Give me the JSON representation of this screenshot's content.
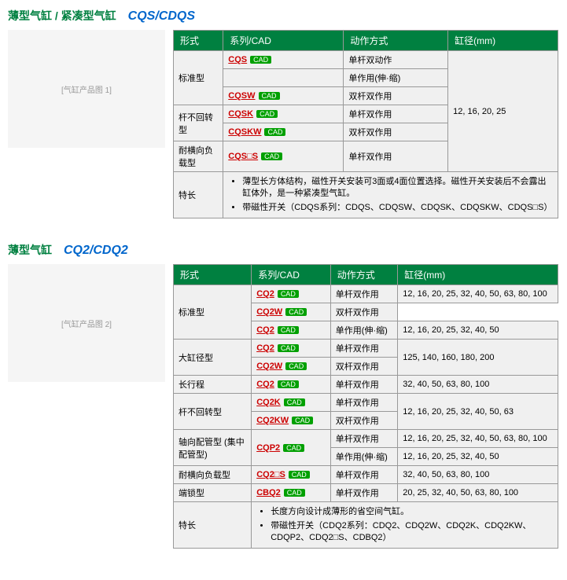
{
  "products": [
    {
      "title": "薄型气缸 / 紧凑型气缸",
      "model": "CQS/CDQS",
      "image_label": "[气缸产品图 1]",
      "headers": [
        "形式",
        "系列/CAD",
        "动作方式",
        "缸径(mm)"
      ],
      "cad_text": "CAD",
      "rows": [
        {
          "form": "标准型",
          "form_rowspan": 3,
          "series": "CQS",
          "action": "单杆双动作",
          "bore": "12, 16, 20, 25",
          "bore_rowspan": 6
        },
        {
          "series": "",
          "action": "单作用(伸·缩)"
        },
        {
          "series": "CQSW",
          "action": "双杆双作用"
        },
        {
          "form": "杆不回转型",
          "form_rowspan": 2,
          "series": "CQSK",
          "action": "单杆双作用"
        },
        {
          "series": "CQSKW",
          "action": "双杆双作用"
        },
        {
          "form": "耐横向负载型",
          "form_rowspan": 1,
          "series": "CQS□S",
          "action": "单杆双作用"
        }
      ],
      "feature_label": "特长",
      "features": [
        "薄型长方体结构，磁性开关安装可3面或4面位置选择。磁性开关安装后不会露出缸体外，是一种紧凑型气缸。",
        "带磁性开关（CDQS系列：CDQS、CDQSW、CDQSK、CDQSKW、CDQS□S）"
      ]
    },
    {
      "title": "薄型气缸",
      "model": "CQ2/CDQ2",
      "image_label": "[气缸产品图 2]",
      "headers": [
        "形式",
        "系列/CAD",
        "动作方式",
        "缸径(mm)"
      ],
      "cad_text": "CAD",
      "rows": [
        {
          "form": "标准型",
          "form_rowspan": 3,
          "series": "CQ2",
          "action": "单杆双作用",
          "bore": "12, 16, 20, 25, 32, 40, 50, 63, 80, 100"
        },
        {
          "series": "CQ2W",
          "action": "双杆双作用"
        },
        {
          "series": "CQ2",
          "action": "单作用(伸·缩)",
          "bore": "12, 16, 20, 25, 32, 40, 50"
        },
        {
          "form": "大缸径型",
          "form_rowspan": 2,
          "series": "CQ2",
          "action": "单杆双作用",
          "bore": "125, 140, 160, 180, 200",
          "bore_rowspan": 2
        },
        {
          "series": "CQ2W",
          "action": "双杆双作用"
        },
        {
          "form": "长行程",
          "form_rowspan": 1,
          "series": "CQ2",
          "action": "单杆双作用",
          "bore": "32, 40, 50, 63, 80, 100"
        },
        {
          "form": "杆不回转型",
          "form_rowspan": 2,
          "series": "CQ2K",
          "action": "单杆双作用",
          "bore": "12, 16, 20, 25, 32, 40, 50, 63",
          "bore_rowspan": 2
        },
        {
          "series": "CQ2KW",
          "action": "双杆双作用"
        },
        {
          "form": "轴向配管型 (集中配管型)",
          "form_rowspan": 2,
          "series": "CQP2",
          "series_rowspan": 2,
          "action": "单杆双作用",
          "bore": "12, 16, 20, 25, 32, 40, 50, 63, 80, 100"
        },
        {
          "action": "单作用(伸·缩)",
          "bore": "12, 16, 20, 25, 32, 40, 50"
        },
        {
          "form": "耐横向负载型",
          "form_rowspan": 1,
          "series": "CQ2□S",
          "action": "单杆双作用",
          "bore": "32, 40, 50, 63, 80, 100"
        },
        {
          "form": "端锁型",
          "form_rowspan": 1,
          "series": "CBQ2",
          "action": "单杆双作用",
          "bore": "20, 25, 32, 40, 50, 63, 80, 100"
        }
      ],
      "feature_label": "特长",
      "features": [
        "长度方向设计成薄形的省空间气缸。",
        "带磁性开关（CDQ2系列：CDQ2、CDQ2W、CDQ2K、CDQ2KW、CDQP2、CDQ2□S、CDBQ2）"
      ]
    }
  ]
}
